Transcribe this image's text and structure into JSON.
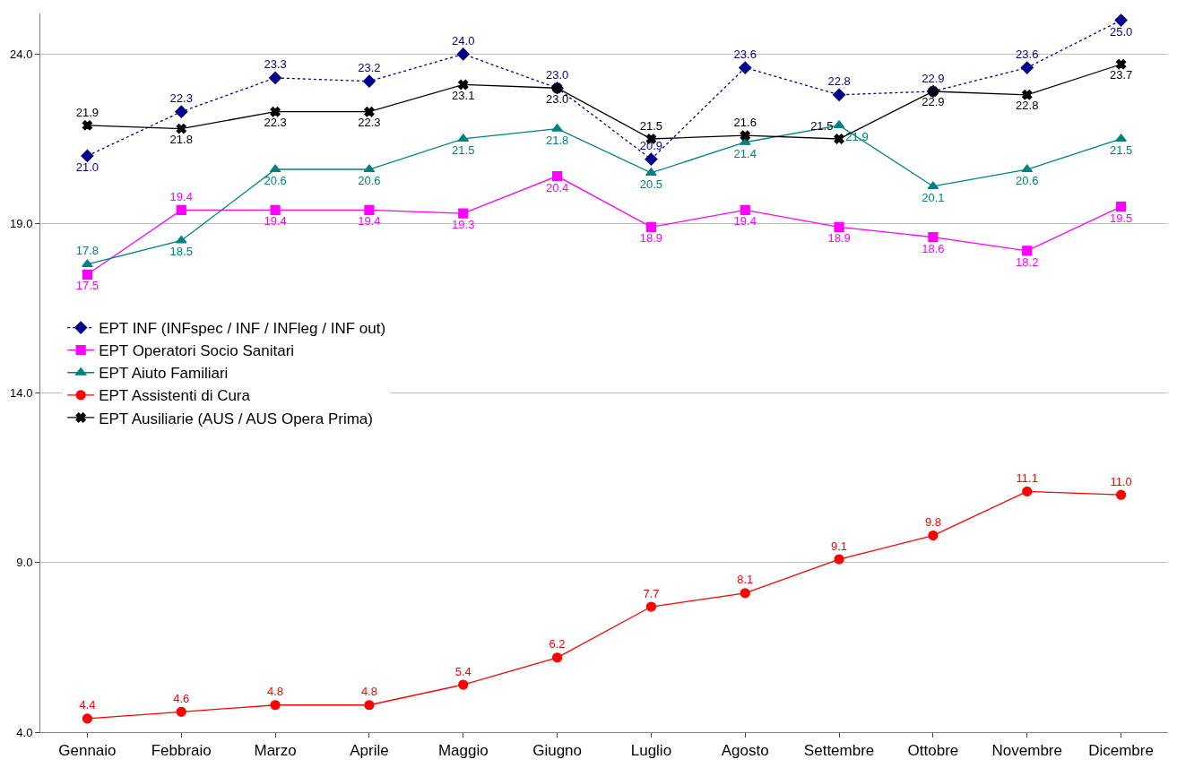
{
  "chart_data": {
    "type": "line",
    "categories": [
      "Gennaio",
      "Febbraio",
      "Marzo",
      "Aprile",
      "Maggio",
      "Giugno",
      "Luglio",
      "Agosto",
      "Settembre",
      "Ottobre",
      "Novembre",
      "Dicembre"
    ],
    "series": [
      {
        "name": "EPT INF (INFspec / INF / INFleg / INF out)",
        "color": "#00008b",
        "marker": "diamond",
        "line_style": "dotted",
        "values": [
          21.0,
          22.3,
          23.3,
          23.2,
          24.0,
          23.0,
          20.9,
          23.6,
          22.8,
          22.9,
          23.6,
          25.0
        ],
        "value_labels": [
          "21.0",
          "22.3",
          "23.3",
          "23.2",
          "24.0",
          "23.0",
          "20.9",
          "23.6",
          "22.8",
          "22.9",
          "23.6",
          "25.0"
        ]
      },
      {
        "name": "EPT Operatori Socio Sanitari",
        "color": "#ff00ff",
        "marker": "square",
        "line_style": "solid",
        "values": [
          17.5,
          19.4,
          19.4,
          19.4,
          19.3,
          20.4,
          18.9,
          19.4,
          18.9,
          18.6,
          18.2,
          19.5
        ],
        "value_labels": [
          "17.5",
          "19.4",
          "19.4",
          "19.4",
          "19.3",
          "20.4",
          "18.9",
          "19.4",
          "18.9",
          "18.6",
          "18.2",
          "19.5"
        ]
      },
      {
        "name": "EPT Aiuto Familiari",
        "color": "#008080",
        "marker": "triangle",
        "line_style": "solid",
        "values": [
          17.8,
          18.5,
          20.6,
          20.6,
          21.5,
          21.8,
          20.5,
          21.4,
          21.9,
          20.1,
          20.6,
          21.5
        ],
        "value_labels": [
          "17.8",
          "18.5",
          "20.6",
          "20.6",
          "21.5",
          "21.8",
          "20.5",
          "21.4",
          "21.9",
          "20.1",
          "20.6",
          "21.5"
        ]
      },
      {
        "name": "EPT Assistenti di Cura",
        "color": "#ff0000",
        "marker": "circle",
        "line_style": "solid",
        "values": [
          4.4,
          4.6,
          4.8,
          4.8,
          5.4,
          6.2,
          7.7,
          8.1,
          9.1,
          9.8,
          11.1,
          11.0
        ],
        "value_labels": [
          "4.4",
          "4.6",
          "4.8",
          "4.8",
          "5.4",
          "6.2",
          "7.7",
          "8.1",
          "9.1",
          "9.8",
          "11.1",
          "11.0"
        ]
      },
      {
        "name": "EPT Ausiliarie (AUS / AUS Opera Prima)",
        "color": "#000000",
        "marker": "cross",
        "line_style": "solid",
        "values": [
          21.9,
          21.8,
          22.3,
          22.3,
          23.1,
          23.0,
          21.5,
          21.6,
          21.5,
          22.9,
          22.8,
          23.7
        ],
        "value_labels": [
          "21.9",
          "21.8",
          "22.3",
          "22.3",
          "23.1",
          "23.0",
          "21.5",
          "21.6",
          "21.5",
          "22.9",
          "22.8",
          "23.7"
        ]
      }
    ],
    "ylim": [
      4.0,
      25.2
    ],
    "yticks": [
      {
        "value": 4,
        "label": "4.0"
      },
      {
        "value": 9,
        "label": "9.0"
      },
      {
        "value": 14,
        "label": "14.0"
      },
      {
        "value": 19,
        "label": "19.0"
      },
      {
        "value": 24,
        "label": "24.0"
      }
    ],
    "grid": "y",
    "legend": "left"
  }
}
